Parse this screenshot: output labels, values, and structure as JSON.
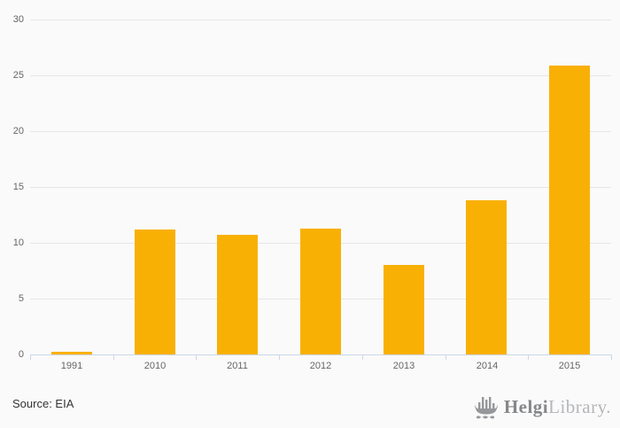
{
  "chart_data": {
    "type": "bar",
    "title": "",
    "xlabel": "",
    "ylabel": "",
    "categories": [
      "1991",
      "2010",
      "2011",
      "2012",
      "2013",
      "2014",
      "2015"
    ],
    "values": [
      0.2,
      11.2,
      10.7,
      11.3,
      8.0,
      13.8,
      25.9
    ],
    "ylim": [
      0,
      30
    ],
    "ytick_step": 5,
    "grid": true,
    "legend": "none",
    "bar_color": "#f9b005",
    "axis_color": "#ccd6eb",
    "grid_color": "#e6e6e6",
    "label_color": "#666666",
    "background_color": "#fafafa"
  },
  "footer": {
    "source": "Source: EIA",
    "logo": {
      "bold": "Helgi",
      "light": "Library."
    }
  }
}
